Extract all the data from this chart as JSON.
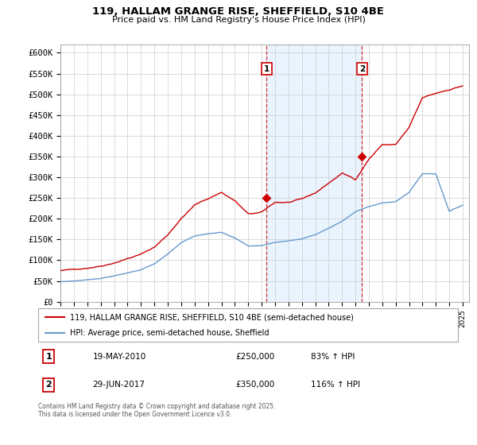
{
  "title": "119, HALLAM GRANGE RISE, SHEFFIELD, S10 4BE",
  "subtitle": "Price paid vs. HM Land Registry's House Price Index (HPI)",
  "ylim": [
    0,
    620000
  ],
  "yticks": [
    0,
    50000,
    100000,
    150000,
    200000,
    250000,
    300000,
    350000,
    400000,
    450000,
    500000,
    550000,
    600000
  ],
  "ytick_labels": [
    "£0",
    "£50K",
    "£100K",
    "£150K",
    "£200K",
    "£250K",
    "£300K",
    "£350K",
    "£400K",
    "£450K",
    "£500K",
    "£550K",
    "£600K"
  ],
  "xlim_start": 1995.0,
  "xlim_end": 2025.5,
  "xticks": [
    1995,
    1996,
    1997,
    1998,
    1999,
    2000,
    2001,
    2002,
    2003,
    2004,
    2005,
    2006,
    2007,
    2008,
    2009,
    2010,
    2011,
    2012,
    2013,
    2014,
    2015,
    2016,
    2017,
    2018,
    2019,
    2020,
    2021,
    2022,
    2023,
    2024,
    2025
  ],
  "red_line_color": "#cc0000",
  "blue_line_color": "#6699cc",
  "vline1_color": "#cc0000",
  "vline2_color": "#cc0000",
  "vline_bg_color": "#ddeeff",
  "vline1_x": 2010.38,
  "vline2_x": 2017.49,
  "marker1_x": 2010.38,
  "marker1_y": 250000,
  "marker2_x": 2017.49,
  "marker2_y": 350000,
  "legend_line1": "119, HALLAM GRANGE RISE, SHEFFIELD, S10 4BE (semi-detached house)",
  "legend_line2": "HPI: Average price, semi-detached house, Sheffield",
  "table_row1": [
    "1",
    "19-MAY-2010",
    "£250,000",
    "83% ↑ HPI"
  ],
  "table_row2": [
    "2",
    "29-JUN-2017",
    "£350,000",
    "116% ↑ HPI"
  ],
  "footer": "Contains HM Land Registry data © Crown copyright and database right 2025.\nThis data is licensed under the Open Government Licence v3.0."
}
